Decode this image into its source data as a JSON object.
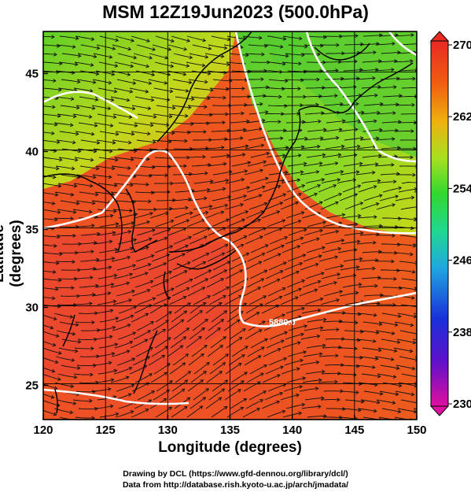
{
  "title": "MSM 12Z19Jun2023 (500.0hPa)",
  "xlabel": "Longitude (degrees)",
  "ylabel": "Latitude  (degrees)",
  "credit_line1": "Drawing by DCL (https://www.gfd-dennou.org/library/dcl/)",
  "credit_line2": "Data from http://database.rish.kyoto-u.ac.jp/arch/jmadata/",
  "contour_label": "5880.0",
  "chart_data": {
    "type": "heatmap",
    "variable": "temperature with streamlines and height contours",
    "x_ticks": [
      120,
      125,
      130,
      135,
      140,
      145,
      150
    ],
    "y_ticks": [
      25,
      30,
      35,
      40,
      45
    ],
    "xlim": [
      120,
      150
    ],
    "ylim": [
      22.8,
      47.7
    ],
    "colorbar": {
      "ticks": [
        "270",
        "262",
        "254",
        "246",
        "238",
        "230"
      ],
      "range": [
        230,
        270
      ],
      "colors": [
        "#e0109a",
        "#5a10c8",
        "#1830d8",
        "#20a0e0",
        "#20d890",
        "#30d830",
        "#a0e020",
        "#f0c010",
        "#f06010",
        "#e82020"
      ]
    },
    "colors": {
      "warm": "#e83a2a",
      "mid": "#f06a18",
      "orange": "#f0a010",
      "cool": "#68d028",
      "contour": "#ffffff"
    }
  }
}
